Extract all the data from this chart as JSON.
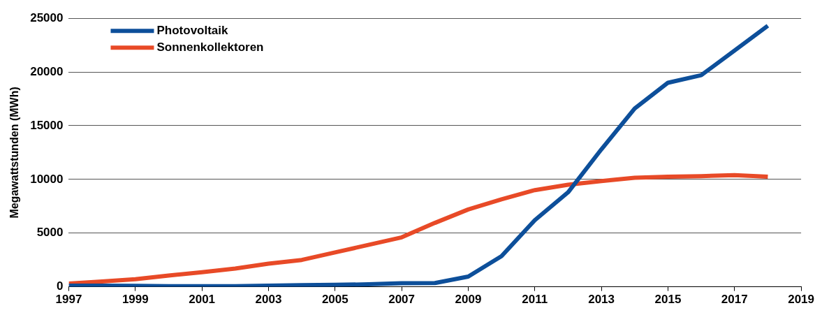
{
  "chart_data": {
    "type": "line",
    "ylabel": "Megawattstunden (MWh)",
    "x": [
      1997,
      1998,
      1999,
      2000,
      2001,
      2002,
      2003,
      2004,
      2005,
      2006,
      2007,
      2008,
      2009,
      2010,
      2011,
      2012,
      2013,
      2014,
      2015,
      2016,
      2017,
      2018
    ],
    "series": [
      {
        "name": "Photovoltaik",
        "color": "#0d4f9a",
        "values": [
          100,
          100,
          80,
          60,
          50,
          50,
          100,
          150,
          180,
          230,
          330,
          350,
          950,
          2850,
          6200,
          8800,
          12800,
          16600,
          19000,
          19700,
          22000,
          24300
        ]
      },
      {
        "name": "Sonnenkollektoren",
        "color": "#e84a27",
        "values": [
          300,
          500,
          700,
          1050,
          1350,
          1700,
          2150,
          2500,
          3200,
          3900,
          4600,
          5950,
          7200,
          8150,
          9000,
          9500,
          9850,
          10150,
          10250,
          10300,
          10400,
          10250
        ]
      }
    ],
    "xlim": [
      1997,
      2019
    ],
    "xticks": [
      1997,
      1999,
      2001,
      2003,
      2005,
      2007,
      2009,
      2011,
      2013,
      2015,
      2017,
      2019
    ],
    "ylim": [
      0,
      25000
    ],
    "yticks": [
      0,
      5000,
      10000,
      15000,
      20000,
      25000
    ],
    "grid": "y",
    "legend": "top left",
    "marker": "none",
    "line_style": "solid"
  }
}
